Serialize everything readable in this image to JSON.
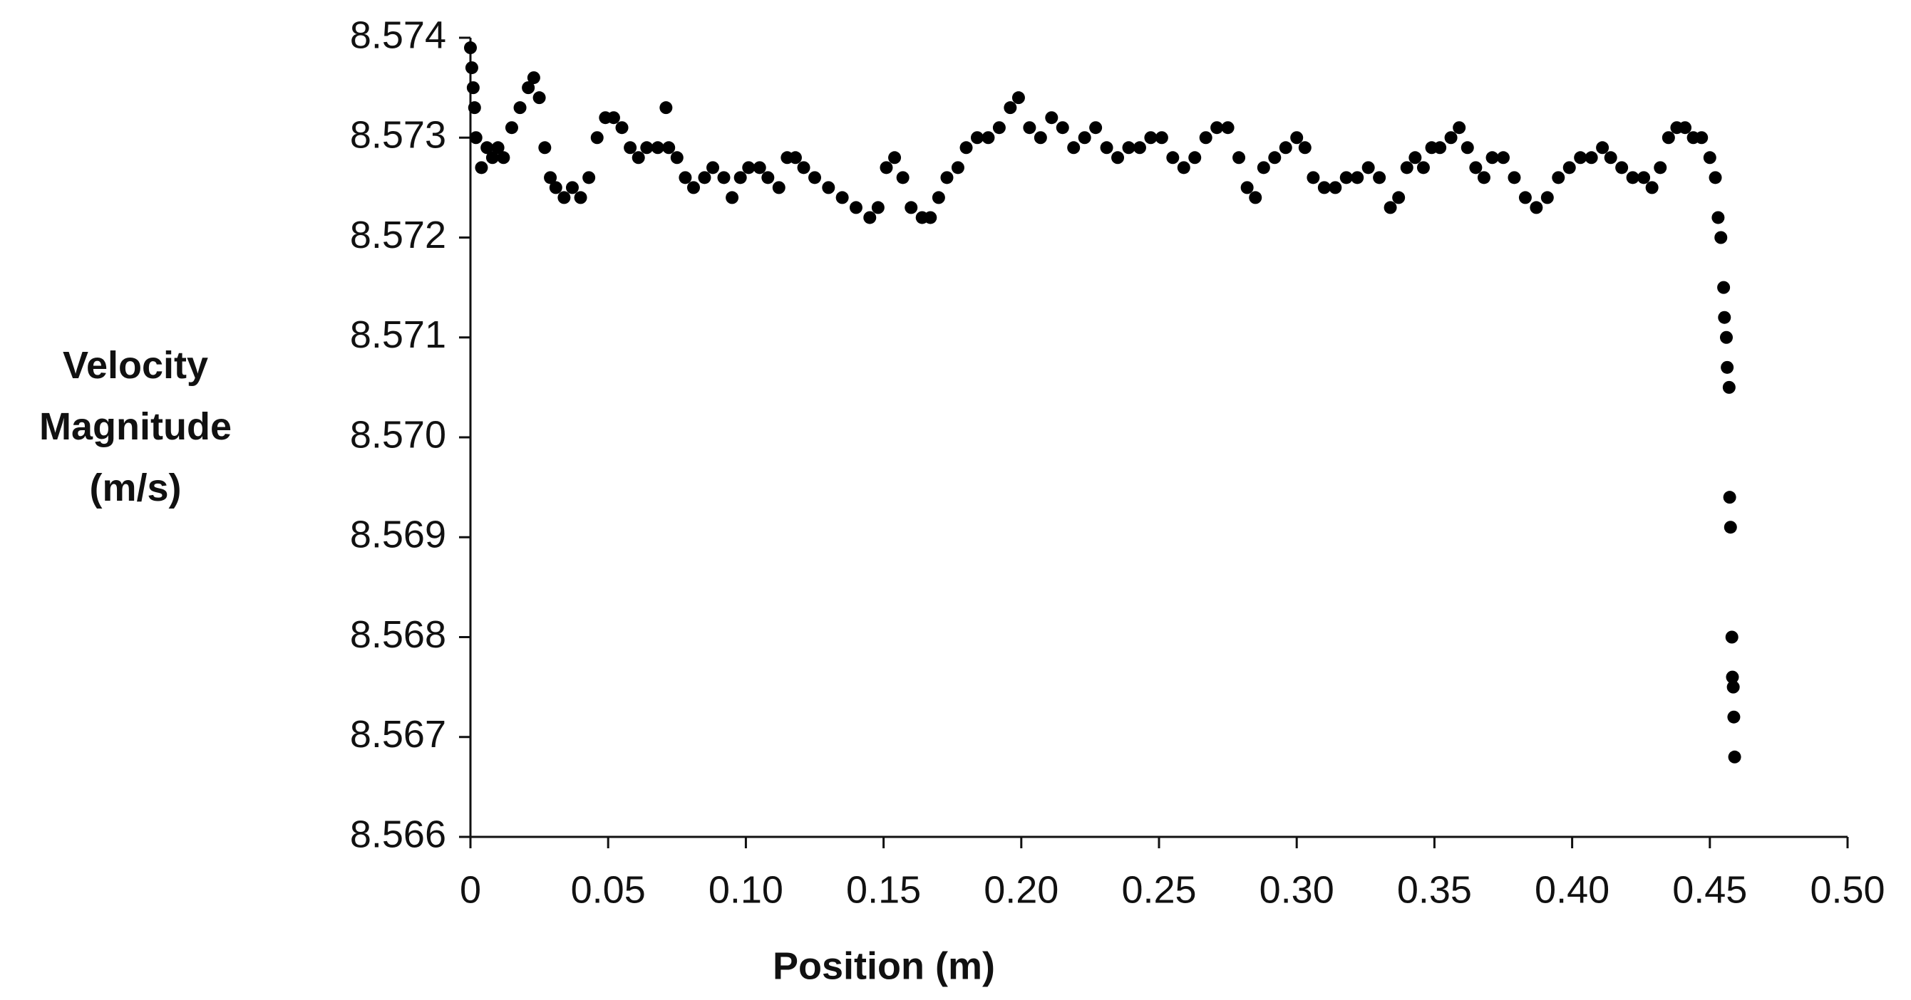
{
  "chart_data": {
    "type": "scatter",
    "xlabel": "Position (m)",
    "ylabel": "Velocity Magnitude (m/s)",
    "color": "#000000",
    "xlim": [
      0,
      0.5
    ],
    "ylim": [
      8.566,
      8.574
    ],
    "xticks": [
      0,
      0.05,
      {
        "value": 0.1,
        "label": "0.10"
      },
      0.15,
      {
        "value": 0.2,
        "label": "0.20"
      },
      0.25,
      {
        "value": 0.3,
        "label": "0.30"
      },
      0.35,
      {
        "value": 0.4,
        "label": "0.40"
      },
      0.45,
      {
        "value": 0.5,
        "label": "0.50"
      }
    ],
    "yticks": [
      8.566,
      8.567,
      8.568,
      8.569,
      {
        "value": 8.57,
        "label": "8.570"
      },
      8.571,
      8.572,
      8.573,
      8.574
    ],
    "x": [
      0,
      0.0005,
      0.001,
      0.0015,
      0.002,
      0.004,
      0.006,
      0.008,
      0.01,
      0.012,
      0.015,
      0.018,
      0.021,
      0.023,
      0.025,
      0.027,
      0.029,
      0.031,
      0.034,
      0.037,
      0.04,
      0.043,
      0.046,
      0.049,
      0.052,
      0.055,
      0.058,
      0.061,
      0.064,
      0.068,
      0.071,
      0.072,
      0.075,
      0.078,
      0.081,
      0.085,
      0.088,
      0.092,
      0.095,
      0.098,
      0.101,
      0.105,
      0.108,
      0.112,
      0.115,
      0.118,
      0.121,
      0.125,
      0.13,
      0.135,
      0.14,
      0.145,
      0.148,
      0.151,
      0.154,
      0.157,
      0.16,
      0.164,
      0.167,
      0.17,
      0.173,
      0.177,
      0.18,
      0.184,
      0.188,
      0.192,
      0.196,
      0.199,
      0.203,
      0.207,
      0.211,
      0.215,
      0.219,
      0.223,
      0.227,
      0.231,
      0.235,
      0.239,
      0.243,
      0.247,
      0.251,
      0.255,
      0.259,
      0.263,
      0.267,
      0.271,
      0.275,
      0.279,
      0.282,
      0.285,
      0.288,
      0.292,
      0.296,
      0.3,
      0.303,
      0.306,
      0.31,
      0.314,
      0.318,
      0.322,
      0.326,
      0.33,
      0.334,
      0.337,
      0.34,
      0.343,
      0.346,
      0.349,
      0.352,
      0.356,
      0.359,
      0.362,
      0.365,
      0.368,
      0.371,
      0.375,
      0.379,
      0.383,
      0.387,
      0.391,
      0.395,
      0.399,
      0.403,
      0.407,
      0.411,
      0.414,
      0.418,
      0.422,
      0.426,
      0.429,
      0.432,
      0.435,
      0.438,
      0.441,
      0.444,
      0.447,
      0.45,
      0.452,
      0.453,
      0.454,
      0.455,
      0.4553,
      0.456,
      0.4563,
      0.457,
      0.4572,
      0.4575,
      0.458,
      0.4582,
      0.4585,
      0.4587,
      0.459
    ],
    "values": [
      8.5739,
      8.5737,
      8.5735,
      8.5733,
      8.573,
      8.5727,
      8.5729,
      8.5728,
      8.5729,
      8.5728,
      8.5731,
      8.5733,
      8.5735,
      8.5736,
      8.5734,
      8.5729,
      8.5726,
      8.5725,
      8.5724,
      8.5725,
      8.5724,
      8.5726,
      8.573,
      8.5732,
      8.5732,
      8.5731,
      8.5729,
      8.5728,
      8.5729,
      8.5729,
      8.5733,
      8.5729,
      8.5728,
      8.5726,
      8.5725,
      8.5726,
      8.5727,
      8.5726,
      8.5724,
      8.5726,
      8.5727,
      8.5727,
      8.5726,
      8.5725,
      8.5728,
      8.5728,
      8.5727,
      8.5726,
      8.5725,
      8.5724,
      8.5723,
      8.5722,
      8.5723,
      8.5727,
      8.5728,
      8.5726,
      8.5723,
      8.5722,
      8.5722,
      8.5724,
      8.5726,
      8.5727,
      8.5729,
      8.573,
      8.573,
      8.5731,
      8.5733,
      8.5734,
      8.5731,
      8.573,
      8.5732,
      8.5731,
      8.5729,
      8.573,
      8.5731,
      8.5729,
      8.5728,
      8.5729,
      8.5729,
      8.573,
      8.573,
      8.5728,
      8.5727,
      8.5728,
      8.573,
      8.5731,
      8.5731,
      8.5728,
      8.5725,
      8.5724,
      8.5727,
      8.5728,
      8.5729,
      8.573,
      8.5729,
      8.5726,
      8.5725,
      8.5725,
      8.5726,
      8.5726,
      8.5727,
      8.5726,
      8.5723,
      8.5724,
      8.5727,
      8.5728,
      8.5727,
      8.5729,
      8.5729,
      8.573,
      8.5731,
      8.5729,
      8.5727,
      8.5726,
      8.5728,
      8.5728,
      8.5726,
      8.5724,
      8.5723,
      8.5724,
      8.5726,
      8.5727,
      8.5728,
      8.5728,
      8.5729,
      8.5728,
      8.5727,
      8.5726,
      8.5726,
      8.5725,
      8.5727,
      8.573,
      8.5731,
      8.5731,
      8.573,
      8.573,
      8.5728,
      8.5726,
      8.5722,
      8.572,
      8.5715,
      8.5712,
      8.571,
      8.5707,
      8.5705,
      8.5694,
      8.5691,
      8.568,
      8.5676,
      8.5675,
      8.5672,
      8.5668
    ]
  }
}
